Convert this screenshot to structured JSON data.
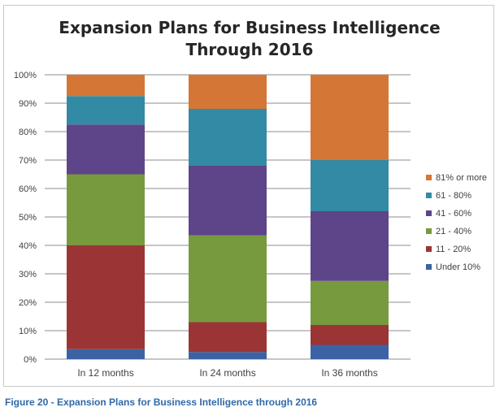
{
  "chart_data": {
    "type": "bar",
    "stacked": true,
    "title_line1": "Expansion Plans for Business Intelligence",
    "title_line2": "Through 2016",
    "xlabel": "",
    "ylabel": "",
    "categories": [
      "In 12 months",
      "In 24 months",
      "In 36 months"
    ],
    "ylim": [
      0,
      100
    ],
    "yticks": [
      "0%",
      "10%",
      "20%",
      "30%",
      "40%",
      "50%",
      "60%",
      "70%",
      "80%",
      "90%",
      "100%"
    ],
    "grid": true,
    "legend_position": "right",
    "series": [
      {
        "name": "Under 10%",
        "color": "#3b63a3",
        "values": [
          3.5,
          2.5,
          5
        ]
      },
      {
        "name": "11 - 20%",
        "color": "#9b3535",
        "values": [
          36.5,
          10.5,
          7
        ]
      },
      {
        "name": "21 - 40%",
        "color": "#779a3e",
        "values": [
          25,
          30.5,
          15.5
        ]
      },
      {
        "name": "41 - 60%",
        "color": "#5e4589",
        "values": [
          17.5,
          24.5,
          24.5
        ]
      },
      {
        "name": "61 - 80%",
        "color": "#338aa4",
        "values": [
          10,
          20,
          18
        ]
      },
      {
        "name": "81% or more",
        "color": "#d47635",
        "values": [
          7.5,
          12,
          30
        ]
      }
    ]
  },
  "caption": "Figure 20 - Expansion Plans for Business Intelligence through 2016"
}
